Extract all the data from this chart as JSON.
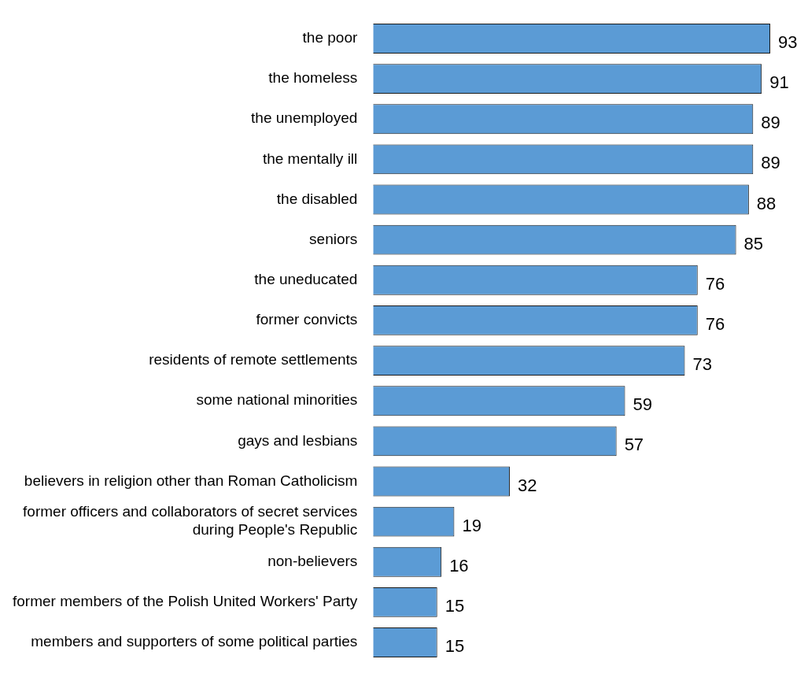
{
  "chart_data": {
    "type": "bar",
    "orientation": "horizontal",
    "data_labels": true,
    "grid": false,
    "legend": false,
    "categories": [
      "the poor",
      "the homeless",
      "the unemployed",
      "the mentally ill",
      "the disabled",
      "seniors",
      "the uneducated",
      "former convicts",
      "residents of remote settlements",
      "some national minorities",
      "gays and lesbians",
      "believers in religion other than Roman Catholicism",
      "former officers and collaborators of secret services during People's Republic",
      "non-believers",
      "former members of the Polish United Workers' Party",
      "members and supporters of some political parties"
    ],
    "values": [
      93,
      91,
      89,
      89,
      88,
      85,
      76,
      76,
      73,
      59,
      57,
      32,
      19,
      16,
      15,
      15
    ],
    "color": "#5b9bd5"
  }
}
